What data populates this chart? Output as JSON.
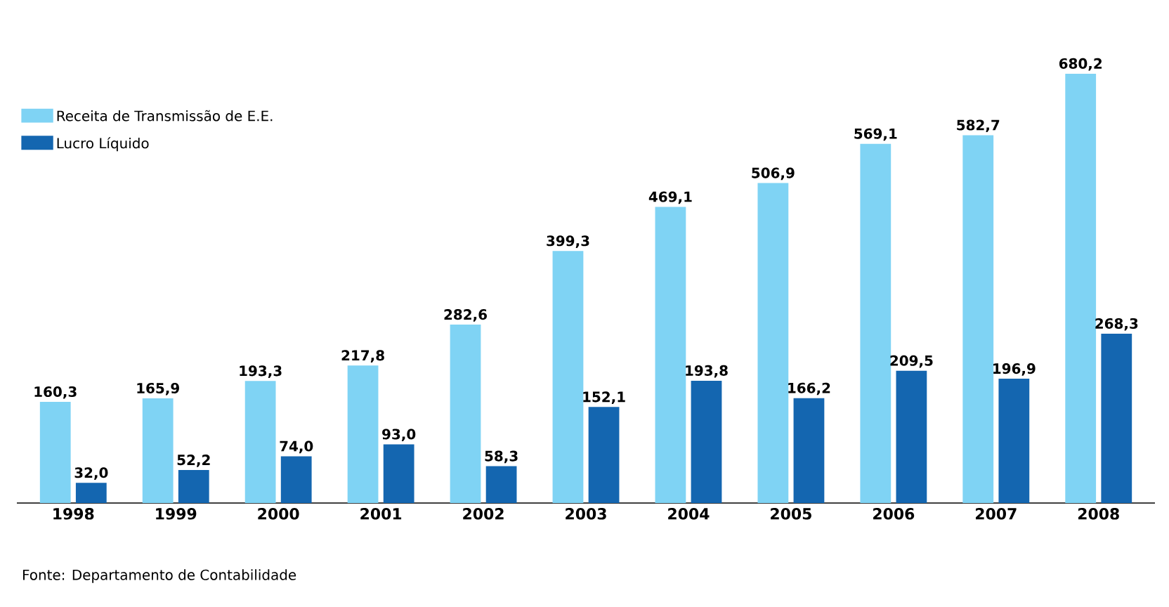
{
  "chart_data": {
    "type": "bar",
    "categories": [
      "1998",
      "1999",
      "2000",
      "2001",
      "2002",
      "2003",
      "2004",
      "2005",
      "2006",
      "2007",
      "2008"
    ],
    "series": [
      {
        "name": "Receita de Transmissão de E.E.",
        "color": "#7fd3f4",
        "values": [
          160.3,
          165.9,
          193.3,
          217.8,
          282.6,
          399.3,
          469.1,
          506.9,
          569.1,
          582.7,
          680.2
        ],
        "value_labels": [
          "160,3",
          "165,9",
          "193,3",
          "217,8",
          "282,6",
          "399,3",
          "469,1",
          "506,9",
          "569,1",
          "582,7",
          "680,2"
        ]
      },
      {
        "name": "Lucro Líquido",
        "color": "#1466b0",
        "values": [
          32.0,
          52.2,
          74.0,
          93.0,
          58.3,
          152.1,
          193.8,
          166.2,
          209.5,
          196.9,
          268.3
        ],
        "value_labels": [
          "32,0",
          "52,2",
          "74,0",
          "93,0",
          "58,3",
          "152,1",
          "193,8",
          "166,2",
          "209,5",
          "196,9",
          "268,3"
        ]
      }
    ],
    "legend": "top left",
    "annotations": [
      "Fonte: Departamento de Contabilidade"
    ]
  }
}
